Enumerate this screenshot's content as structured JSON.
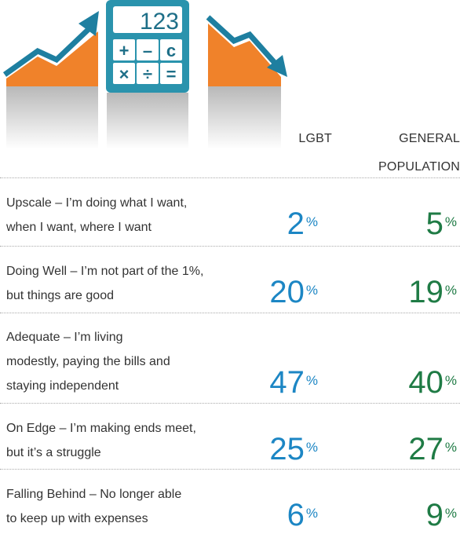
{
  "table": {
    "columns": [
      "LGBT",
      "GENERAL POPULATION"
    ],
    "rows": [
      {
        "label": [
          "Upscale – I’m doing what I want,",
          "when I want, where I want"
        ],
        "lgbt": 2,
        "general": 5,
        "suffix": "%"
      },
      {
        "label": [
          "Doing Well –  I’m not part of the 1%,",
          "but things are good"
        ],
        "lgbt": 20,
        "general": 19,
        "suffix": "%"
      },
      {
        "label": [
          "Adequate – I’m living",
          "modestly, paying the bills and",
          "staying independent"
        ],
        "lgbt": 47,
        "general": 40,
        "suffix": "%"
      },
      {
        "label": [
          "On Edge – I’m making ends meet,",
          "but it’s a struggle"
        ],
        "lgbt": 25,
        "general": 27,
        "suffix": "%"
      },
      {
        "label": [
          "Falling Behind – No longer able",
          "to keep up with expenses"
        ],
        "lgbt": 6,
        "general": 9,
        "suffix": "%"
      }
    ],
    "icon": {
      "display": "123",
      "keys": [
        "+",
        "–",
        "c",
        "×",
        "÷",
        "="
      ]
    }
  }
}
